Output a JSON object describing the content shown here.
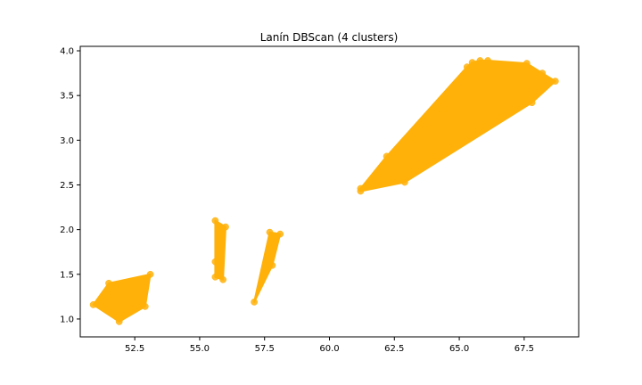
{
  "chart_data": {
    "type": "scatter",
    "title": "Lanín DBScan (4 clusters)",
    "xlabel": "",
    "ylabel": "",
    "xlim": [
      50.4,
      69.6
    ],
    "ylim": [
      0.8,
      4.05
    ],
    "x_ticks": [
      52.5,
      55.0,
      57.5,
      60.0,
      62.5,
      65.0,
      67.5
    ],
    "x_tick_labels": [
      "52.5",
      "55.0",
      "57.5",
      "60.0",
      "62.5",
      "65.0",
      "67.5"
    ],
    "y_ticks": [
      1.0,
      1.5,
      2.0,
      2.5,
      3.0,
      3.5,
      4.0
    ],
    "y_tick_labels": [
      "1.0",
      "1.5",
      "2.0",
      "2.5",
      "3.0",
      "3.5",
      "4.0"
    ],
    "grid": false,
    "color": "#ffb10a",
    "clusters": [
      {
        "points": [
          {
            "x": 50.9,
            "y": 1.16
          },
          {
            "x": 51.5,
            "y": 1.4
          },
          {
            "x": 53.1,
            "y": 1.5
          },
          {
            "x": 52.9,
            "y": 1.14
          },
          {
            "x": 51.9,
            "y": 0.97
          }
        ],
        "hull": [
          [
            50.9,
            1.16
          ],
          [
            51.5,
            1.4
          ],
          [
            53.1,
            1.5
          ],
          [
            52.9,
            1.14
          ],
          [
            51.9,
            0.97
          ]
        ]
      },
      {
        "points": [
          {
            "x": 55.6,
            "y": 2.1
          },
          {
            "x": 56.0,
            "y": 2.03
          },
          {
            "x": 55.6,
            "y": 1.64
          },
          {
            "x": 55.6,
            "y": 1.47
          },
          {
            "x": 55.8,
            "y": 1.49
          },
          {
            "x": 55.9,
            "y": 1.44
          }
        ],
        "hull": [
          [
            55.6,
            2.1
          ],
          [
            56.0,
            2.03
          ],
          [
            55.9,
            1.44
          ],
          [
            55.6,
            1.47
          ]
        ]
      },
      {
        "points": [
          {
            "x": 57.7,
            "y": 1.97
          },
          {
            "x": 58.1,
            "y": 1.95
          },
          {
            "x": 57.8,
            "y": 1.6
          },
          {
            "x": 57.1,
            "y": 1.19
          }
        ],
        "hull": [
          [
            57.7,
            1.97
          ],
          [
            58.1,
            1.95
          ],
          [
            57.8,
            1.6
          ],
          [
            57.1,
            1.19
          ]
        ]
      },
      {
        "points": [
          {
            "x": 61.2,
            "y": 2.46
          },
          {
            "x": 61.2,
            "y": 2.43
          },
          {
            "x": 62.2,
            "y": 2.82
          },
          {
            "x": 62.9,
            "y": 2.53
          },
          {
            "x": 65.3,
            "y": 3.82
          },
          {
            "x": 65.5,
            "y": 3.87
          },
          {
            "x": 65.8,
            "y": 3.89
          },
          {
            "x": 66.1,
            "y": 3.89
          },
          {
            "x": 67.6,
            "y": 3.86
          },
          {
            "x": 68.2,
            "y": 3.75
          },
          {
            "x": 68.7,
            "y": 3.66
          },
          {
            "x": 67.8,
            "y": 3.42
          }
        ],
        "hull": [
          [
            61.2,
            2.46
          ],
          [
            62.2,
            2.82
          ],
          [
            65.3,
            3.82
          ],
          [
            65.5,
            3.87
          ],
          [
            65.8,
            3.89
          ],
          [
            66.1,
            3.89
          ],
          [
            67.6,
            3.86
          ],
          [
            68.2,
            3.75
          ],
          [
            68.7,
            3.66
          ],
          [
            67.8,
            3.42
          ],
          [
            62.9,
            2.53
          ],
          [
            61.2,
            2.43
          ]
        ]
      }
    ]
  }
}
